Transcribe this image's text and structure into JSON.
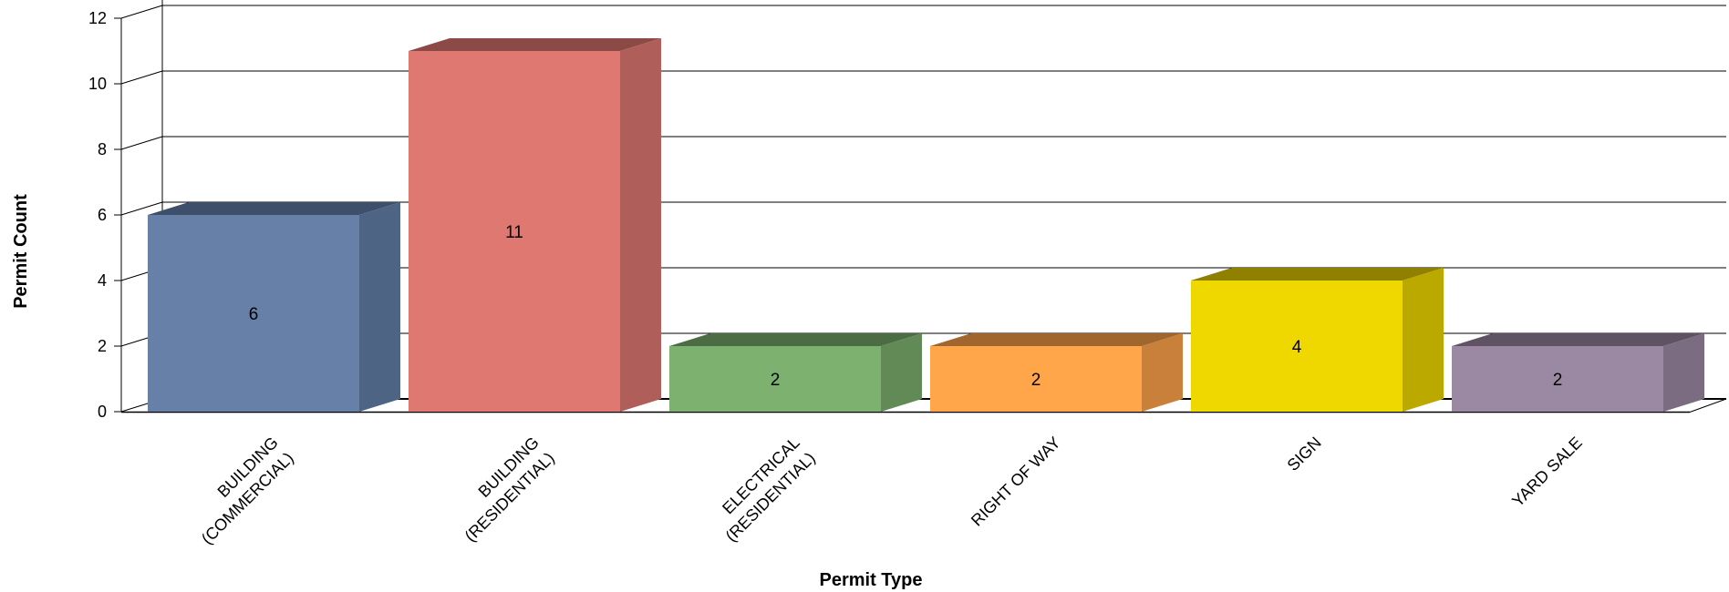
{
  "chart_data": {
    "type": "bar",
    "categories": [
      [
        "BUILDING",
        "(COMMERCIAL)"
      ],
      [
        "BUILDING",
        "(RESIDENTIAL)"
      ],
      [
        "ELECTRICAL",
        "(RESIDENTIAL)"
      ],
      [
        "RIGHT OF WAY"
      ],
      [
        "SIGN"
      ],
      [
        "YARD SALE"
      ]
    ],
    "values": [
      6,
      11,
      2,
      2,
      4,
      2
    ],
    "colors": [
      {
        "front": "#6680a8",
        "side": "#4e6485",
        "top": "#3d4f6b"
      },
      {
        "front": "#e07872",
        "side": "#af5e59",
        "top": "#8c4a46"
      },
      {
        "front": "#7cb170",
        "side": "#618a57",
        "top": "#4c6d44"
      },
      {
        "front": "#ffa54a",
        "side": "#c9803a",
        "top": "#a0662d"
      },
      {
        "front": "#efd700",
        "side": "#bca900",
        "top": "#8f8000"
      },
      {
        "front": "#9b88a3",
        "side": "#7b6c81",
        "top": "#5e5263"
      }
    ],
    "xlabel": "Permit Type",
    "ylabel": "Permit Count",
    "ylim": [
      0,
      12
    ],
    "yticks": [
      0,
      2,
      4,
      6,
      8,
      10,
      12
    ],
    "grid": true,
    "style": "3d"
  }
}
